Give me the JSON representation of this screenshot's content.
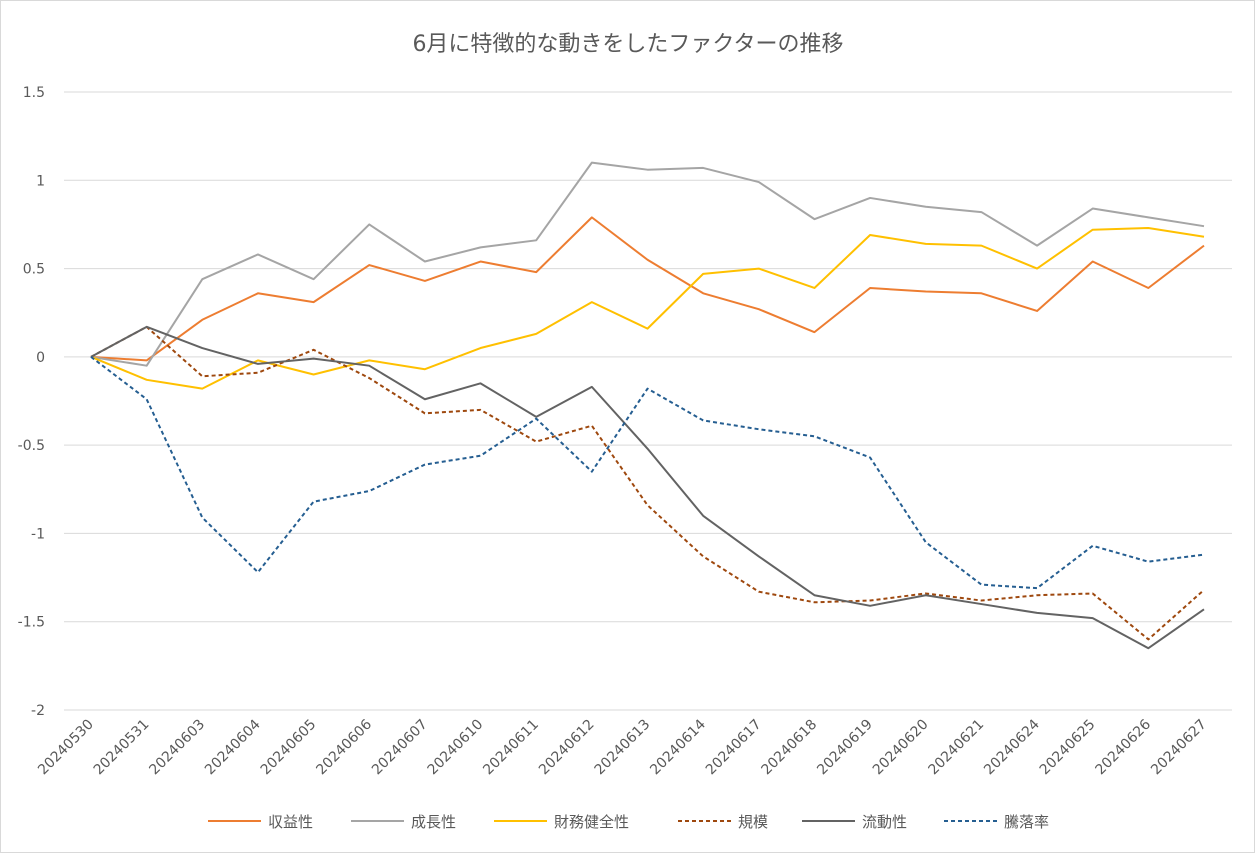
{
  "chart_data": {
    "type": "line",
    "title": "6月に特徴的な動きをしたファクターの推移",
    "xlabel": "",
    "ylabel": "",
    "ylim": [
      -2,
      1.5
    ],
    "yticks": [
      1.5,
      1,
      0.5,
      0,
      -0.5,
      -1,
      -1.5,
      -2
    ],
    "ytick_labels": [
      "1.5",
      "1",
      "0.5",
      "0",
      "-0.5",
      "-1",
      "-1.5",
      "-2"
    ],
    "grid": true,
    "legend_position": "bottom",
    "categories": [
      "20240530",
      "20240531",
      "20240603",
      "20240604",
      "20240605",
      "20240606",
      "20240607",
      "20240610",
      "20240611",
      "20240612",
      "20240613",
      "20240614",
      "20240617",
      "20240618",
      "20240619",
      "20240620",
      "20240621",
      "20240624",
      "20240625",
      "20240626",
      "20240627"
    ],
    "series": [
      {
        "name": "収益性",
        "color": "#ED7D31",
        "dash": "solid",
        "values": [
          0,
          -0.02,
          0.21,
          0.36,
          0.31,
          0.52,
          0.43,
          0.54,
          0.48,
          0.79,
          0.55,
          0.36,
          0.27,
          0.14,
          0.39,
          0.37,
          0.36,
          0.26,
          0.54,
          0.39,
          0.63
        ]
      },
      {
        "name": "成長性",
        "color": "#A5A5A5",
        "dash": "solid",
        "values": [
          0,
          -0.05,
          0.44,
          0.58,
          0.44,
          0.75,
          0.54,
          0.62,
          0.66,
          1.1,
          1.06,
          1.07,
          0.99,
          0.78,
          0.9,
          0.85,
          0.82,
          0.63,
          0.84,
          0.79,
          0.74
        ]
      },
      {
        "name": "財務健全性",
        "color": "#FFC000",
        "dash": "solid",
        "values": [
          0,
          -0.13,
          -0.18,
          -0.02,
          -0.1,
          -0.02,
          -0.07,
          0.05,
          0.13,
          0.31,
          0.16,
          0.47,
          0.5,
          0.39,
          0.69,
          0.64,
          0.63,
          0.5,
          0.72,
          0.73,
          0.68
        ]
      },
      {
        "name": "規模",
        "color": "#9E480E",
        "dash": "dashed",
        "values": [
          0,
          0.17,
          -0.11,
          -0.09,
          0.04,
          -0.12,
          -0.32,
          -0.3,
          -0.48,
          -0.39,
          -0.84,
          -1.13,
          -1.33,
          -1.39,
          -1.38,
          -1.34,
          -1.38,
          -1.35,
          -1.34,
          -1.6,
          -1.32
        ]
      },
      {
        "name": "流動性",
        "color": "#636363",
        "dash": "solid",
        "values": [
          0,
          0.17,
          0.05,
          -0.04,
          -0.01,
          -0.05,
          -0.24,
          -0.15,
          -0.34,
          -0.17,
          -0.52,
          -0.9,
          -1.13,
          -1.35,
          -1.41,
          -1.35,
          -1.4,
          -1.45,
          -1.48,
          -1.65,
          -1.43
        ]
      },
      {
        "name": "騰落率",
        "color": "#255E91",
        "dash": "dashed",
        "values": [
          0,
          -0.24,
          -0.91,
          -1.22,
          -0.82,
          -0.76,
          -0.61,
          -0.56,
          -0.35,
          -0.65,
          -0.18,
          -0.36,
          -0.41,
          -0.45,
          -0.57,
          -1.05,
          -1.29,
          -1.31,
          -1.07,
          -1.16,
          -1.12
        ]
      }
    ]
  }
}
